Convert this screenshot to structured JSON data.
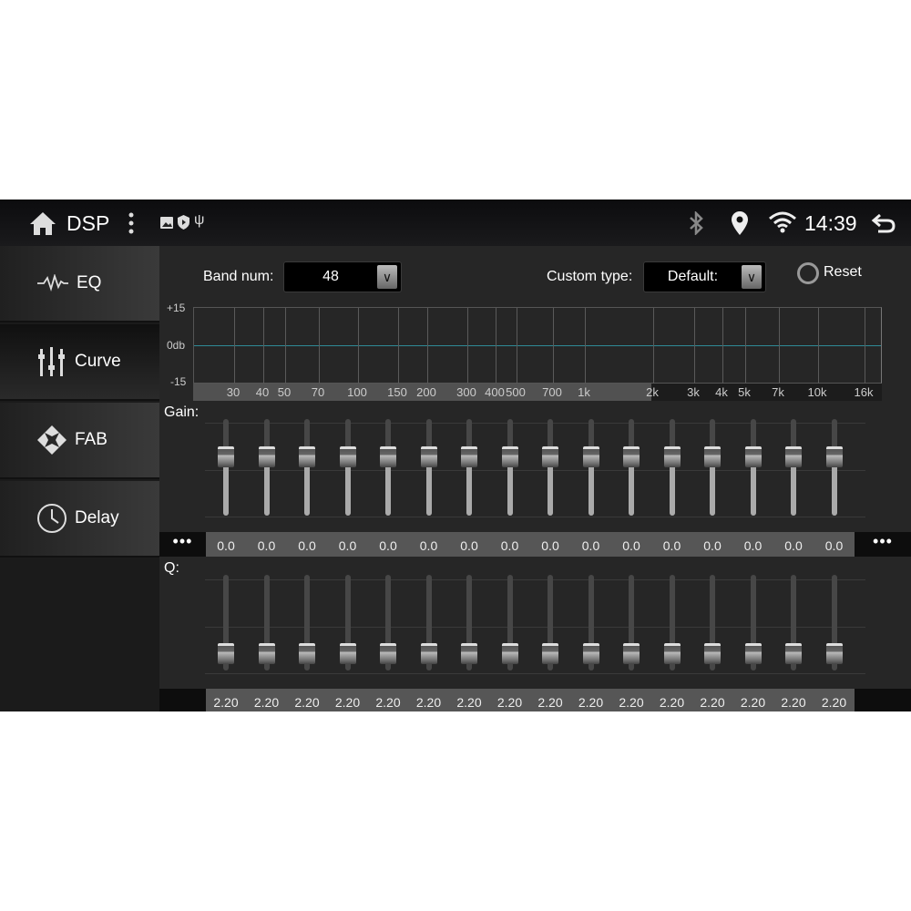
{
  "status_bar": {
    "title": "DSP",
    "time": "14:39",
    "icons": [
      "home-icon",
      "more-vert-icon",
      "image-icon",
      "shield-play-icon",
      "usb-icon",
      "bluetooth-icon",
      "location-icon",
      "wifi-icon",
      "back-icon"
    ]
  },
  "sidebar": {
    "items": [
      {
        "label": "EQ",
        "icon": "waveform-icon"
      },
      {
        "label": "Curve",
        "icon": "sliders-icon",
        "active": true
      },
      {
        "label": "FAB",
        "icon": "fader-balance-icon"
      },
      {
        "label": "Delay",
        "icon": "clock-icon"
      }
    ]
  },
  "controls": {
    "band_label": "Band num:",
    "band_value": "48",
    "custom_label": "Custom type:",
    "custom_value": "Default:",
    "reset_label": "Reset"
  },
  "graph": {
    "y_labels": [
      "+15",
      "0db",
      "-15"
    ],
    "freq_labels": [
      "30",
      "40",
      "50",
      "70",
      "100",
      "150",
      "200",
      "300",
      "400",
      "500",
      "700",
      "1k",
      "2k",
      "3k",
      "4k",
      "5k",
      "7k",
      "10k",
      "16k"
    ],
    "line_color": "#2f8a96"
  },
  "gain": {
    "label": "Gain:",
    "range": [
      -15,
      15
    ],
    "values": [
      "0.0",
      "0.0",
      "0.0",
      "0.0",
      "0.0",
      "0.0",
      "0.0",
      "0.0",
      "0.0",
      "0.0",
      "0.0",
      "0.0",
      "0.0",
      "0.0",
      "0.0",
      "0.0"
    ],
    "more": "•••"
  },
  "q": {
    "label": "Q:",
    "values": [
      "2.20",
      "2.20",
      "2.20",
      "2.20",
      "2.20",
      "2.20",
      "2.20",
      "2.20",
      "2.20",
      "2.20",
      "2.20",
      "2.20",
      "2.20",
      "2.20",
      "2.20",
      "2.20"
    ]
  }
}
